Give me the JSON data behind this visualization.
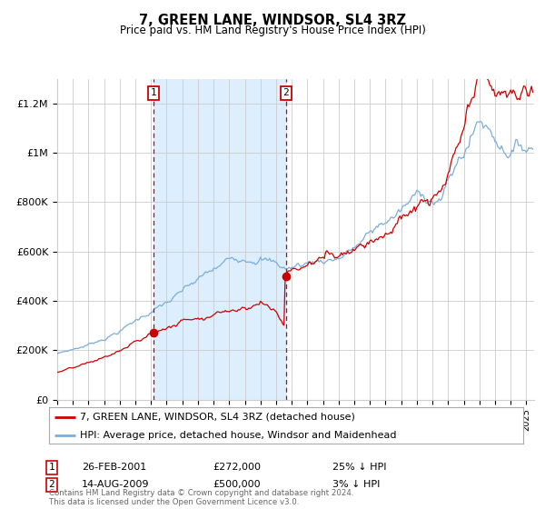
{
  "title": "7, GREEN LANE, WINDSOR, SL4 3RZ",
  "subtitle": "Price paid vs. HM Land Registry's House Price Index (HPI)",
  "ylim": [
    0,
    1300000
  ],
  "yticks": [
    0,
    200000,
    400000,
    600000,
    800000,
    1000000,
    1200000
  ],
  "ytick_labels": [
    "£0",
    "£200K",
    "£400K",
    "£600K",
    "£800K",
    "£1M",
    "£1.2M"
  ],
  "hpi_color": "#7aaddb",
  "price_color": "#cc0000",
  "shade_color": "#ddeeff",
  "grid_color": "#cccccc",
  "bg_color": "#ffffff",
  "marker1_date_num": 2001.15,
  "marker1_value": 272000,
  "marker2_date_num": 2009.62,
  "marker2_value": 500000,
  "shade_x1": 2001.15,
  "shade_x2": 2009.62,
  "legend_line1": "7, GREEN LANE, WINDSOR, SL4 3RZ (detached house)",
  "legend_line2": "HPI: Average price, detached house, Windsor and Maidenhead",
  "annotation1_date": "26-FEB-2001",
  "annotation1_price": "£272,000",
  "annotation1_hpi": "25% ↓ HPI",
  "annotation2_date": "14-AUG-2009",
  "annotation2_price": "£500,000",
  "annotation2_hpi": "3% ↓ HPI",
  "footer": "Contains HM Land Registry data © Crown copyright and database right 2024.\nThis data is licensed under the Open Government Licence v3.0.",
  "xmin": 1995,
  "xmax": 2025.5
}
